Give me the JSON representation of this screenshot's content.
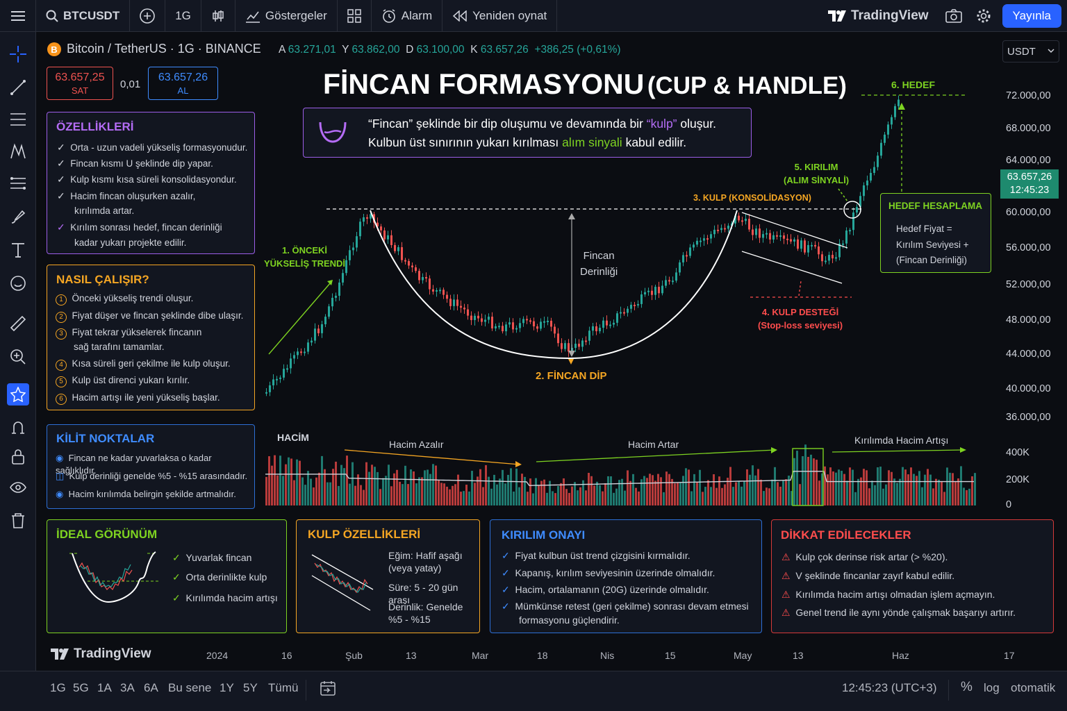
{
  "topbar": {
    "symbol": "BTCUSDT",
    "interval": "1G",
    "indicators": "Göstergeler",
    "alarm": "Alarm",
    "replay": "Yeniden oynat",
    "brand": "TradingView",
    "publish": "Yayınla"
  },
  "legend": {
    "name": "Bitcoin / TetherUS · 1G · BINANCE",
    "o_label": "A",
    "o": "63.271,01",
    "h_label": "Y",
    "h": "63.862,00",
    "l_label": "D",
    "l": "63.100,00",
    "c_label": "K",
    "c": "63.657,26",
    "change": "+386,25 (+0,61%)",
    "currency": "USDT"
  },
  "trade": {
    "sell_price": "63.657,25",
    "sell": "SAT",
    "spread": "0,01",
    "buy_price": "63.657,26",
    "buy": "AL"
  },
  "title": {
    "main": "FİNCAN FORMASYONU",
    "sub": "(CUP & HANDLE)"
  },
  "info": {
    "line1_a": "“Fincan” şeklinde bir dip oluşumu ve devamında bir ",
    "line1_b": "“kulp”",
    "line1_c": " oluşur.",
    "line2_a": "Kulbun üst sınırının yukarı kırılması ",
    "line2_b": "alım sinyali",
    "line2_c": " kabul edilir."
  },
  "features": {
    "title": "ÖZELLİKLERİ",
    "items": [
      "Orta - uzun vadeli yükseliş formasyonudur.",
      "Fincan kısmı U şeklinde dip yapar.",
      "Kulp kısmı kısa süreli konsolidasyondur.",
      "Hacim fincan oluşurken azalır,",
      "kırılımda artar.",
      "Kırılım sonrası hedef, fincan derinliği",
      "kadar yukarı projekte edilir."
    ]
  },
  "how": {
    "title": "NASIL ÇALIŞIR?",
    "items": [
      "Önceki yükseliş trendi oluşur.",
      "Fiyat düşer ve fincan şeklinde dibe ulaşır.",
      "Fiyat tekrar yükselerek fincanın",
      "sağ tarafını tamamlar.",
      "Kısa süreli geri çekilme ile kulp oluşur.",
      "Kulp üst direnci yukarı kırılır.",
      "Hacim artışı ile yeni yükseliş başlar."
    ],
    "nums": [
      "1",
      "2",
      "3",
      "4",
      "5",
      "6"
    ]
  },
  "keys": {
    "title": "KİLİT NOKTALAR",
    "items": [
      "Fincan ne kadar yuvarlaksa o kadar sağlıklıdır.",
      "Kulp derinliği genelde %5 - %15 arasındadır.",
      "Hacim kırılımda belirgin şekilde artmalıdır."
    ]
  },
  "labels": {
    "prior": "1. ÖNCEKİ",
    "prior2": "YÜKSELİŞ TRENDİ",
    "dip": "2. FİNCAN DİP",
    "handle": "3. KULP (KONSOLİDASYON)",
    "support": "4. KULP DESTEĞİ",
    "support2": "(Stop-loss seviyesi)",
    "breakout": "5. KIRILIM",
    "breakout2": "(ALIM SİNYALİ)",
    "target": "6. HEDEF",
    "depth1": "Fincan",
    "depth2": "Derinliği"
  },
  "target_calc": {
    "title": "HEDEF HESAPLAMA",
    "l1": "Hedef Fiyat =",
    "l2": "Kırılım Seviyesi +",
    "l3": "(Fincan Derinliği)"
  },
  "price_axis": {
    "ticks": [
      "72.000,00",
      "68.000,00",
      "64.000,00",
      "60.000,00",
      "56.000,00",
      "52.000,00",
      "48.000,00",
      "44.000,00",
      "40.000,00",
      "36.000,00"
    ],
    "last_price": "63.657,26",
    "last_time": "12:45:23"
  },
  "volume": {
    "title": "HACİM",
    "decrease": "Hacim Azalır",
    "increase": "Hacim Artar",
    "breakout": "Kırılımda Hacim Artışı",
    "ticks": [
      "400K",
      "200K",
      "0"
    ]
  },
  "ideal": {
    "title": "İDEAL GÖRÜNÜM",
    "items": [
      "Yuvarlak fincan",
      "Orta derinlikte kulp",
      "Kırılımda hacim artışı"
    ]
  },
  "handle_props": {
    "title": "KULP ÖZELLİKLERİ",
    "slope1": "Eğim: Hafif aşağı",
    "slope2": "(veya yatay)",
    "dur": "Süre: 5 - 20 gün arası",
    "depth1": "Derinlik: Genelde",
    "depth2": "%5 - %15"
  },
  "confirm": {
    "title": "KIRILIM ONAYI",
    "items": [
      "Fiyat kulbun üst trend çizgisini kırmalıdır.",
      "Kapanış, kırılım seviyesinin üzerinde olmalıdır.",
      "Hacim, ortalamanın (20G) üzerinde olmalıdır.",
      "Mümkünse retest (geri çekilme) sonrası devam etmesi",
      "formasyonu güçlendirir."
    ]
  },
  "caution": {
    "title": "DİKKAT EDİLECEKLER",
    "items": [
      "Kulp çok derinse risk artar (> %20).",
      "V şeklinde fincanlar zayıf kabul edilir.",
      "Kırılımda hacim artışı olmadan işlem açmayın.",
      "Genel trend ile aynı yönde çalışmak başarıyı artırır."
    ]
  },
  "time_axis": [
    "2024",
    "16",
    "Şub",
    "13",
    "Mar",
    "18",
    "Nis",
    "15",
    "May",
    "13",
    "Haz",
    "17"
  ],
  "bottombar": {
    "ranges": [
      "1G",
      "5G",
      "1A",
      "3A",
      "6A",
      "Bu sene",
      "1Y",
      "5Y",
      "Tümü"
    ],
    "clock": "12:45:23 (UTC+3)",
    "pct": "%",
    "log": "log",
    "auto": "otomatik"
  },
  "colors": {
    "up": "#26a69a",
    "down": "#ef5350",
    "accent": "#2962ff",
    "purple": "#b46cf5",
    "orange": "#f5a623",
    "green": "#7ed321",
    "red": "#ff4d4d",
    "blue": "#3f8cff"
  }
}
